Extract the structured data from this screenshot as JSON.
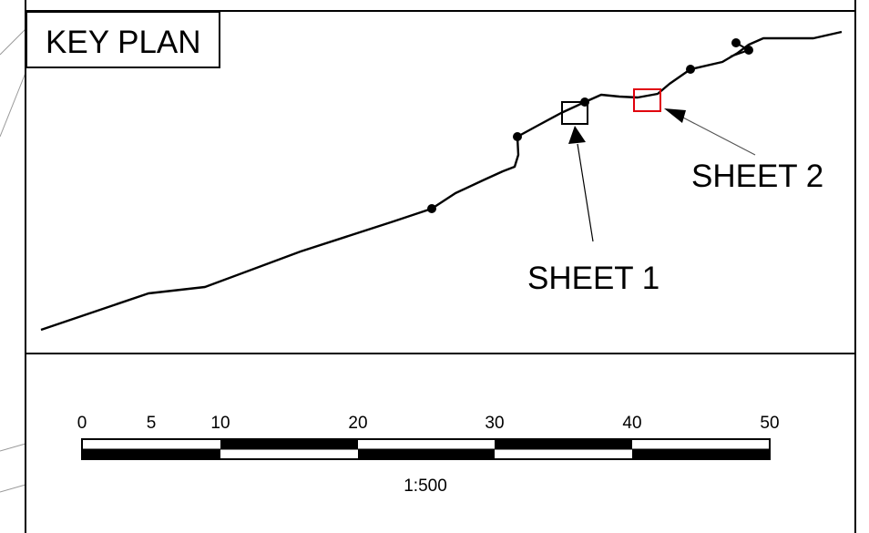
{
  "key_plan": {
    "title": "KEY PLAN",
    "sheet_labels": [
      {
        "id": "sheet-1",
        "text": "SHEET 1",
        "marker_color": "#000000"
      },
      {
        "id": "sheet-2",
        "text": "SHEET 2",
        "marker_color": "#e0000d"
      }
    ]
  },
  "scale_bar": {
    "ticks": [
      "0",
      "5",
      "10",
      "20",
      "30",
      "40",
      "50"
    ],
    "ratio": "1:500"
  },
  "colors": {
    "line": "#000000",
    "highlight": "#e0000d",
    "background": "#ffffff"
  }
}
